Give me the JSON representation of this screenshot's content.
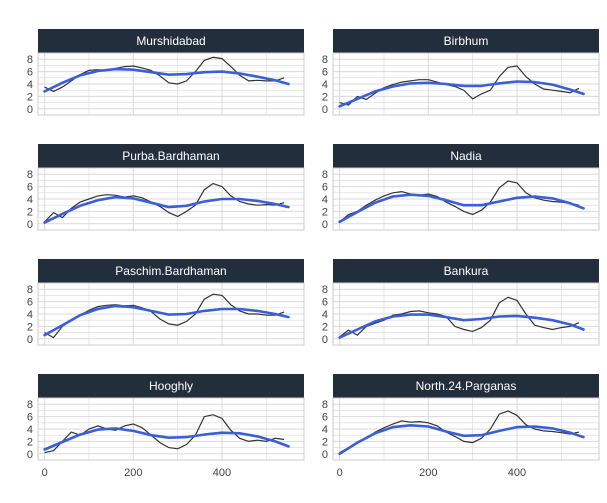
{
  "chart_data": {
    "type": "line",
    "layout": {
      "rows": 4,
      "cols": 2
    },
    "xlim": [
      -15,
      585
    ],
    "ylim": [
      -1,
      9
    ],
    "x_ticks": [
      0,
      200,
      400
    ],
    "y_ticks": [
      0,
      2,
      4,
      6,
      8
    ],
    "grid": true,
    "colors": {
      "strip_bg": "#232e3c",
      "strip_text": "#ffffff",
      "raw_line": "#333333",
      "smooth_line": "#3a5fd8",
      "grid": "#d9d9d9",
      "axis_text": "#444444",
      "panel_border": "#cccccc"
    },
    "panels": [
      {
        "title": "Murshidabad",
        "raw": {
          "x": [
            0,
            20,
            40,
            60,
            80,
            100,
            120,
            140,
            160,
            180,
            200,
            220,
            240,
            260,
            280,
            300,
            320,
            340,
            360,
            380,
            400,
            420,
            440,
            460,
            480,
            500,
            520,
            540
          ],
          "y": [
            3.5,
            2.8,
            3.5,
            4.5,
            5.5,
            6.2,
            6.3,
            6.2,
            6.5,
            6.8,
            6.9,
            6.6,
            6.2,
            5.3,
            4.2,
            4.0,
            4.5,
            6.0,
            7.8,
            8.3,
            8.1,
            6.8,
            5.4,
            4.5,
            4.6,
            4.5,
            4.5,
            5.0
          ]
        },
        "smooth": {
          "x": [
            0,
            40,
            80,
            120,
            160,
            200,
            240,
            280,
            320,
            360,
            400,
            440,
            480,
            520,
            550
          ],
          "y": [
            2.8,
            4.2,
            5.4,
            6.1,
            6.4,
            6.3,
            5.9,
            5.5,
            5.6,
            5.9,
            6.0,
            5.7,
            5.2,
            4.6,
            4.0
          ]
        }
      },
      {
        "title": "Birbhum",
        "raw": {
          "x": [
            0,
            20,
            40,
            60,
            80,
            100,
            120,
            140,
            160,
            180,
            200,
            220,
            240,
            260,
            280,
            300,
            320,
            340,
            360,
            380,
            400,
            420,
            440,
            460,
            480,
            500,
            520,
            540
          ],
          "y": [
            1.0,
            0.6,
            2.0,
            1.5,
            2.5,
            3.4,
            3.9,
            4.3,
            4.5,
            4.7,
            4.7,
            4.3,
            3.9,
            3.6,
            3.0,
            1.6,
            2.4,
            3.0,
            5.2,
            6.7,
            6.9,
            5.2,
            4.0,
            3.2,
            3.0,
            2.8,
            2.6,
            3.3
          ]
        },
        "smooth": {
          "x": [
            0,
            40,
            80,
            120,
            160,
            200,
            240,
            280,
            320,
            360,
            400,
            440,
            480,
            520,
            550
          ],
          "y": [
            0.4,
            1.6,
            2.8,
            3.6,
            4.1,
            4.2,
            4.0,
            3.7,
            3.7,
            4.1,
            4.4,
            4.3,
            3.9,
            3.1,
            2.4
          ]
        }
      },
      {
        "title": "Purba.Bardhaman",
        "raw": {
          "x": [
            0,
            20,
            40,
            60,
            80,
            100,
            120,
            140,
            160,
            180,
            200,
            220,
            240,
            260,
            280,
            300,
            320,
            340,
            360,
            380,
            400,
            420,
            440,
            460,
            480,
            500,
            520,
            540
          ],
          "y": [
            0.3,
            1.8,
            1.0,
            2.5,
            3.5,
            4.0,
            4.5,
            4.7,
            4.6,
            4.3,
            4.5,
            4.2,
            3.5,
            2.8,
            1.8,
            1.2,
            2.0,
            3.0,
            5.5,
            6.5,
            6.0,
            4.5,
            3.6,
            3.2,
            3.0,
            3.1,
            3.0,
            3.4
          ]
        },
        "smooth": {
          "x": [
            0,
            40,
            80,
            120,
            160,
            200,
            240,
            280,
            320,
            360,
            400,
            440,
            480,
            520,
            550
          ],
          "y": [
            0.2,
            1.6,
            2.9,
            3.8,
            4.3,
            4.1,
            3.4,
            2.7,
            2.9,
            3.6,
            4.0,
            4.0,
            3.7,
            3.2,
            2.7
          ]
        }
      },
      {
        "title": "Nadia",
        "raw": {
          "x": [
            0,
            20,
            40,
            60,
            80,
            100,
            120,
            140,
            160,
            180,
            200,
            220,
            240,
            260,
            280,
            300,
            320,
            340,
            360,
            380,
            400,
            420,
            440,
            460,
            480,
            500,
            520,
            540
          ],
          "y": [
            0.3,
            1.5,
            2.0,
            3.0,
            3.8,
            4.5,
            5.0,
            5.2,
            4.8,
            4.6,
            4.8,
            4.4,
            3.5,
            2.8,
            2.0,
            1.5,
            2.2,
            3.5,
            5.8,
            6.9,
            6.6,
            5.0,
            4.2,
            3.8,
            3.6,
            3.5,
            3.3,
            3.0
          ]
        },
        "smooth": {
          "x": [
            0,
            40,
            80,
            120,
            160,
            200,
            240,
            280,
            320,
            360,
            400,
            440,
            480,
            520,
            550
          ],
          "y": [
            0.3,
            1.9,
            3.4,
            4.4,
            4.7,
            4.5,
            3.8,
            3.0,
            3.0,
            3.6,
            4.2,
            4.4,
            4.1,
            3.3,
            2.5
          ]
        }
      },
      {
        "title": "Paschim.Bardhaman",
        "raw": {
          "x": [
            0,
            20,
            40,
            60,
            80,
            100,
            120,
            140,
            160,
            180,
            200,
            220,
            240,
            260,
            280,
            300,
            320,
            340,
            360,
            380,
            400,
            420,
            440,
            460,
            480,
            500,
            520,
            540
          ],
          "y": [
            1.0,
            0.2,
            2.0,
            3.0,
            3.8,
            4.6,
            5.2,
            5.4,
            5.5,
            5.3,
            5.4,
            5.0,
            4.4,
            3.2,
            2.4,
            2.2,
            2.8,
            4.0,
            6.4,
            7.2,
            7.0,
            5.5,
            4.5,
            4.0,
            4.0,
            3.8,
            3.8,
            4.3
          ]
        },
        "smooth": {
          "x": [
            0,
            40,
            80,
            120,
            160,
            200,
            240,
            280,
            320,
            360,
            400,
            440,
            480,
            520,
            550
          ],
          "y": [
            0.6,
            2.2,
            3.8,
            4.8,
            5.3,
            5.1,
            4.5,
            3.9,
            4.0,
            4.5,
            4.8,
            4.8,
            4.5,
            4.0,
            3.5
          ]
        }
      },
      {
        "title": "Bankura",
        "raw": {
          "x": [
            0,
            20,
            40,
            60,
            80,
            100,
            120,
            140,
            160,
            180,
            200,
            220,
            240,
            260,
            280,
            300,
            320,
            340,
            360,
            380,
            400,
            420,
            440,
            460,
            480,
            500,
            520,
            540
          ],
          "y": [
            0.3,
            1.4,
            0.6,
            2.0,
            2.5,
            3.0,
            3.8,
            4.0,
            4.4,
            4.5,
            4.2,
            4.0,
            3.6,
            2.0,
            1.5,
            1.2,
            1.8,
            3.0,
            5.8,
            6.7,
            6.2,
            4.0,
            2.2,
            1.8,
            1.5,
            1.8,
            2.0,
            2.6
          ]
        },
        "smooth": {
          "x": [
            0,
            40,
            80,
            120,
            160,
            200,
            240,
            280,
            320,
            360,
            400,
            440,
            480,
            520,
            550
          ],
          "y": [
            0.2,
            1.5,
            2.8,
            3.6,
            3.9,
            3.9,
            3.5,
            3.0,
            3.2,
            3.6,
            3.7,
            3.4,
            3.0,
            2.3,
            1.5
          ]
        }
      },
      {
        "title": "Hooghly",
        "raw": {
          "x": [
            0,
            20,
            40,
            60,
            80,
            100,
            120,
            140,
            160,
            180,
            200,
            220,
            240,
            260,
            280,
            300,
            320,
            340,
            360,
            380,
            400,
            420,
            440,
            460,
            480,
            500,
            520,
            540
          ],
          "y": [
            0.2,
            0.5,
            2.0,
            3.5,
            3.0,
            4.0,
            4.5,
            4.0,
            3.8,
            4.5,
            4.8,
            4.2,
            3.0,
            1.8,
            1.0,
            0.8,
            1.5,
            3.0,
            6.0,
            6.3,
            5.7,
            3.8,
            2.5,
            2.0,
            2.2,
            2.0,
            2.5,
            2.3
          ]
        },
        "smooth": {
          "x": [
            0,
            40,
            80,
            120,
            160,
            200,
            240,
            280,
            320,
            360,
            400,
            440,
            480,
            520,
            550
          ],
          "y": [
            0.7,
            1.9,
            3.1,
            3.9,
            4.1,
            3.7,
            3.0,
            2.6,
            2.7,
            3.1,
            3.4,
            3.3,
            2.8,
            2.0,
            1.2
          ]
        }
      },
      {
        "title": "North.24.Parganas",
        "raw": {
          "x": [
            0,
            20,
            40,
            60,
            80,
            100,
            120,
            140,
            160,
            180,
            200,
            220,
            240,
            260,
            280,
            300,
            320,
            340,
            360,
            380,
            400,
            420,
            440,
            460,
            480,
            500,
            520,
            540
          ],
          "y": [
            0.2,
            1.0,
            1.8,
            2.5,
            3.5,
            4.2,
            4.8,
            5.3,
            5.1,
            5.2,
            5.0,
            4.5,
            3.5,
            2.8,
            2.0,
            1.8,
            2.5,
            4.0,
            6.4,
            6.9,
            6.2,
            4.7,
            4.0,
            3.7,
            3.6,
            3.4,
            3.2,
            3.5
          ]
        },
        "smooth": {
          "x": [
            0,
            40,
            80,
            120,
            160,
            200,
            240,
            280,
            320,
            360,
            400,
            440,
            480,
            520,
            550
          ],
          "y": [
            0.0,
            1.8,
            3.3,
            4.3,
            4.6,
            4.4,
            3.6,
            2.9,
            3.0,
            3.7,
            4.3,
            4.4,
            4.1,
            3.4,
            2.7
          ]
        }
      }
    ]
  }
}
